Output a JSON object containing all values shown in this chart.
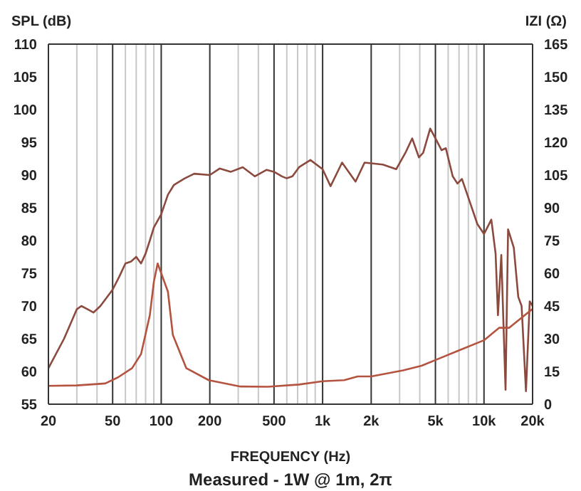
{
  "chart_data": {
    "type": "line",
    "xlabel": "FREQUENCY (Hz)",
    "ylabel": "SPL (dB)",
    "y2label": "IZI (Ω)",
    "annotations": [
      "Measured - 1W @ 1m, 2π"
    ],
    "log": "x",
    "grid": true,
    "marker": "none",
    "line_style": "solid",
    "xlim": [
      20,
      20000
    ],
    "ylim": [
      55,
      110
    ],
    "y2lim": [
      0,
      165
    ],
    "xticks": [
      20,
      {
        "value": 30,
        "label": null
      },
      {
        "value": 40,
        "label": null
      },
      50,
      {
        "value": 60,
        "label": null
      },
      {
        "value": 70,
        "label": null
      },
      {
        "value": 80,
        "label": null
      },
      {
        "value": 90,
        "label": null
      },
      100,
      200,
      {
        "value": 300,
        "label": null
      },
      {
        "value": 400,
        "label": null
      },
      500,
      {
        "value": 600,
        "label": null
      },
      {
        "value": 700,
        "label": null
      },
      {
        "value": 800,
        "label": null
      },
      {
        "value": 900,
        "label": null
      },
      {
        "value": 1000,
        "label": "1k"
      },
      {
        "value": 2000,
        "label": "2k"
      },
      {
        "value": 3000,
        "label": null
      },
      {
        "value": 4000,
        "label": null
      },
      {
        "value": 5000,
        "label": "5k"
      },
      {
        "value": 6000,
        "label": null
      },
      {
        "value": 7000,
        "label": null
      },
      {
        "value": 8000,
        "label": null
      },
      {
        "value": 9000,
        "label": null
      },
      {
        "value": 10000,
        "label": "10k"
      },
      {
        "value": 20000,
        "label": "20k"
      }
    ],
    "yticks": [
      55,
      60,
      65,
      70,
      75,
      80,
      85,
      90,
      95,
      100,
      105,
      110
    ],
    "y2ticks": [
      0,
      15,
      30,
      45,
      60,
      75,
      90,
      105,
      120,
      135,
      150,
      165
    ],
    "series": [
      {
        "color": "#8c4a3f",
        "x": [
          20,
          25,
          30,
          32,
          35,
          38,
          42,
          50,
          55,
          60,
          65,
          70,
          75,
          80,
          85,
          90,
          100,
          110,
          120,
          140,
          160,
          200,
          230,
          270,
          320,
          380,
          450,
          500,
          560,
          600,
          650,
          715,
          840,
          1000,
          1120,
          1320,
          1600,
          1820,
          2360,
          2860,
          3260,
          3590,
          3950,
          4200,
          4640,
          5000,
          5460,
          5800,
          6400,
          6850,
          7300,
          8300,
          9100,
          10000,
          11100,
          11800,
          12200,
          12800,
          13600,
          14100,
          15300,
          16300,
          17100,
          18200,
          19200,
          20000
        ],
        "values": [
          60.5,
          65,
          69.5,
          70,
          69.5,
          69,
          70,
          72.5,
          74.5,
          76.5,
          76.8,
          77.5,
          76.5,
          78,
          80,
          82,
          84,
          87,
          88.5,
          89.5,
          90.2,
          90,
          91,
          90.5,
          91.2,
          89.8,
          90.8,
          90.5,
          89.8,
          89.5,
          89.8,
          91.2,
          92.3,
          90.9,
          88.3,
          91.9,
          89,
          91.9,
          91.6,
          90.9,
          93.4,
          95.6,
          92.7,
          93.4,
          97.1,
          95.6,
          93.8,
          94.1,
          89.8,
          88.7,
          89.4,
          85.4,
          82.5,
          81,
          83.2,
          78,
          68.6,
          77.8,
          57.2,
          81.7,
          78.9,
          71.4,
          70,
          57,
          70.7,
          70
        ]
      },
      {
        "axis": "y2",
        "color": "#b4533f",
        "x": [
          20,
          30,
          45,
          54,
          66,
          75,
          85,
          90,
          95,
          100,
          110,
          118,
          143,
          197,
          310,
          458,
          715,
          1000,
          1360,
          1650,
          2000,
          3150,
          4100,
          5300,
          6850,
          10000,
          12400,
          14300,
          20000
        ],
        "values": [
          8.4,
          8.6,
          9.5,
          12.3,
          16.5,
          23,
          40.8,
          56,
          64.5,
          60,
          51.6,
          31.8,
          16.5,
          11,
          8.1,
          8,
          9,
          10.5,
          11,
          12.7,
          12.7,
          15.5,
          17.6,
          21,
          24.4,
          29.3,
          35,
          35,
          43.7
        ]
      }
    ]
  }
}
